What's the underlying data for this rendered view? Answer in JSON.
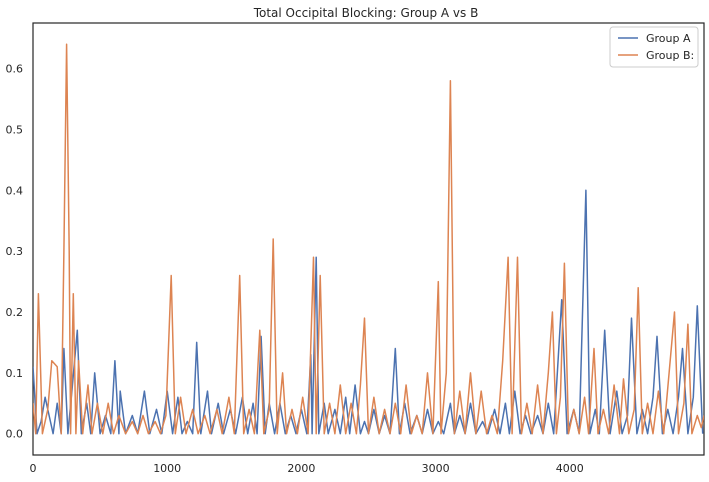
{
  "chart_data": {
    "type": "line",
    "title": "Total Occipital Blocking: Group A vs B",
    "xlabel": "",
    "ylabel": "",
    "xlim": [
      0,
      5000
    ],
    "ylim": [
      -0.035,
      0.675
    ],
    "x_ticks": [
      0,
      1000,
      2000,
      3000,
      4000
    ],
    "x_tick_labels": [
      "0",
      "1000",
      "2000",
      "3000",
      "4000"
    ],
    "y_ticks": [
      0.0,
      0.1,
      0.2,
      0.3,
      0.4,
      0.5,
      0.6
    ],
    "y_tick_labels": [
      "0.0",
      "0.1",
      "0.2",
      "0.3",
      "0.4",
      "0.5",
      "0.6"
    ],
    "grid": false,
    "legend_position": "top-right",
    "series": [
      {
        "name": "Group A",
        "color": "#4c72b0",
        "points": [
          [
            0,
            0.11
          ],
          [
            30,
            0.0
          ],
          [
            60,
            0.02
          ],
          [
            90,
            0.06
          ],
          [
            120,
            0.03
          ],
          [
            150,
            0.0
          ],
          [
            180,
            0.05
          ],
          [
            210,
            0.0
          ],
          [
            230,
            0.14
          ],
          [
            260,
            0.0
          ],
          [
            290,
            0.07
          ],
          [
            330,
            0.17
          ],
          [
            360,
            0.0
          ],
          [
            400,
            0.05
          ],
          [
            430,
            0.0
          ],
          [
            460,
            0.1
          ],
          [
            500,
            0.0
          ],
          [
            540,
            0.03
          ],
          [
            580,
            0.0
          ],
          [
            610,
            0.12
          ],
          [
            640,
            0.0
          ],
          [
            650,
            0.07
          ],
          [
            690,
            0.0
          ],
          [
            740,
            0.03
          ],
          [
            780,
            0.0
          ],
          [
            830,
            0.07
          ],
          [
            870,
            0.0
          ],
          [
            920,
            0.04
          ],
          [
            960,
            0.0
          ],
          [
            1000,
            0.07
          ],
          [
            1040,
            0.0
          ],
          [
            1080,
            0.06
          ],
          [
            1110,
            0.0
          ],
          [
            1150,
            0.02
          ],
          [
            1190,
            0.0
          ],
          [
            1220,
            0.15
          ],
          [
            1250,
            0.0
          ],
          [
            1300,
            0.07
          ],
          [
            1330,
            0.0
          ],
          [
            1380,
            0.05
          ],
          [
            1420,
            0.0
          ],
          [
            1470,
            0.04
          ],
          [
            1510,
            0.0
          ],
          [
            1560,
            0.06
          ],
          [
            1600,
            0.0
          ],
          [
            1640,
            0.05
          ],
          [
            1670,
            0.0
          ],
          [
            1700,
            0.16
          ],
          [
            1730,
            0.0
          ],
          [
            1760,
            0.05
          ],
          [
            1800,
            0.0
          ],
          [
            1840,
            0.05
          ],
          [
            1880,
            0.0
          ],
          [
            1920,
            0.03
          ],
          [
            1960,
            0.0
          ],
          [
            2000,
            0.04
          ],
          [
            2040,
            0.0
          ],
          [
            2070,
            0.13
          ],
          [
            2080,
            0.0
          ],
          [
            2110,
            0.29
          ],
          [
            2130,
            0.0
          ],
          [
            2170,
            0.05
          ],
          [
            2200,
            0.0
          ],
          [
            2250,
            0.04
          ],
          [
            2290,
            0.0
          ],
          [
            2330,
            0.06
          ],
          [
            2360,
            0.0
          ],
          [
            2400,
            0.08
          ],
          [
            2440,
            0.0
          ],
          [
            2470,
            0.02
          ],
          [
            2500,
            0.0
          ],
          [
            2540,
            0.04
          ],
          [
            2580,
            0.0
          ],
          [
            2620,
            0.03
          ],
          [
            2660,
            0.0
          ],
          [
            2700,
            0.14
          ],
          [
            2730,
            0.0
          ],
          [
            2770,
            0.05
          ],
          [
            2810,
            0.0
          ],
          [
            2860,
            0.03
          ],
          [
            2900,
            0.0
          ],
          [
            2940,
            0.04
          ],
          [
            2980,
            0.0
          ],
          [
            3020,
            0.02
          ],
          [
            3060,
            0.0
          ],
          [
            3110,
            0.05
          ],
          [
            3140,
            0.0
          ],
          [
            3180,
            0.03
          ],
          [
            3220,
            0.0
          ],
          [
            3260,
            0.05
          ],
          [
            3300,
            0.0
          ],
          [
            3350,
            0.02
          ],
          [
            3390,
            0.0
          ],
          [
            3440,
            0.04
          ],
          [
            3480,
            0.0
          ],
          [
            3520,
            0.05
          ],
          [
            3550,
            0.0
          ],
          [
            3590,
            0.07
          ],
          [
            3630,
            0.0
          ],
          [
            3670,
            0.03
          ],
          [
            3710,
            0.0
          ],
          [
            3760,
            0.03
          ],
          [
            3800,
            0.0
          ],
          [
            3840,
            0.05
          ],
          [
            3880,
            0.0
          ],
          [
            3940,
            0.22
          ],
          [
            3980,
            0.0
          ],
          [
            4030,
            0.04
          ],
          [
            4070,
            0.0
          ],
          [
            4120,
            0.4
          ],
          [
            4150,
            0.0
          ],
          [
            4190,
            0.04
          ],
          [
            4220,
            0.0
          ],
          [
            4260,
            0.17
          ],
          [
            4300,
            0.0
          ],
          [
            4350,
            0.07
          ],
          [
            4390,
            0.0
          ],
          [
            4430,
            0.03
          ],
          [
            4460,
            0.19
          ],
          [
            4500,
            0.0
          ],
          [
            4540,
            0.04
          ],
          [
            4580,
            0.0
          ],
          [
            4620,
            0.06
          ],
          [
            4650,
            0.16
          ],
          [
            4690,
            0.0
          ],
          [
            4730,
            0.04
          ],
          [
            4770,
            0.0
          ],
          [
            4810,
            0.06
          ],
          [
            4840,
            0.14
          ],
          [
            4880,
            0.0
          ],
          [
            4920,
            0.06
          ],
          [
            4950,
            0.21
          ],
          [
            4990,
            0.0
          ]
        ]
      },
      {
        "name": "Group B:",
        "color": "#dd8452",
        "points": [
          [
            0,
            0.05
          ],
          [
            20,
            0.0
          ],
          [
            40,
            0.23
          ],
          [
            70,
            0.0
          ],
          [
            110,
            0.04
          ],
          [
            140,
            0.12
          ],
          [
            180,
            0.11
          ],
          [
            210,
            0.0
          ],
          [
            230,
            0.3
          ],
          [
            250,
            0.64
          ],
          [
            270,
            0.3
          ],
          [
            280,
            0.0
          ],
          [
            300,
            0.23
          ],
          [
            320,
            0.0
          ],
          [
            340,
            0.12
          ],
          [
            370,
            0.0
          ],
          [
            410,
            0.08
          ],
          [
            440,
            0.0
          ],
          [
            480,
            0.05
          ],
          [
            520,
            0.0
          ],
          [
            560,
            0.05
          ],
          [
            600,
            0.0
          ],
          [
            640,
            0.03
          ],
          [
            690,
            0.0
          ],
          [
            740,
            0.02
          ],
          [
            780,
            0.0
          ],
          [
            820,
            0.03
          ],
          [
            860,
            0.0
          ],
          [
            910,
            0.02
          ],
          [
            950,
            0.0
          ],
          [
            990,
            0.03
          ],
          [
            1030,
            0.26
          ],
          [
            1060,
            0.0
          ],
          [
            1100,
            0.06
          ],
          [
            1140,
            0.0
          ],
          [
            1190,
            0.04
          ],
          [
            1230,
            0.0
          ],
          [
            1280,
            0.03
          ],
          [
            1320,
            0.0
          ],
          [
            1370,
            0.04
          ],
          [
            1410,
            0.0
          ],
          [
            1460,
            0.06
          ],
          [
            1500,
            0.0
          ],
          [
            1540,
            0.26
          ],
          [
            1570,
            0.0
          ],
          [
            1610,
            0.04
          ],
          [
            1650,
            0.0
          ],
          [
            1690,
            0.17
          ],
          [
            1720,
            0.0
          ],
          [
            1760,
            0.04
          ],
          [
            1790,
            0.32
          ],
          [
            1820,
            0.0
          ],
          [
            1860,
            0.1
          ],
          [
            1890,
            0.0
          ],
          [
            1930,
            0.04
          ],
          [
            1970,
            0.0
          ],
          [
            2010,
            0.06
          ],
          [
            2050,
            0.0
          ],
          [
            2090,
            0.29
          ],
          [
            2110,
            0.0
          ],
          [
            2140,
            0.26
          ],
          [
            2170,
            0.0
          ],
          [
            2210,
            0.05
          ],
          [
            2250,
            0.0
          ],
          [
            2290,
            0.08
          ],
          [
            2330,
            0.0
          ],
          [
            2370,
            0.05
          ],
          [
            2410,
            0.0
          ],
          [
            2440,
            0.08
          ],
          [
            2470,
            0.19
          ],
          [
            2500,
            0.0
          ],
          [
            2540,
            0.06
          ],
          [
            2580,
            0.0
          ],
          [
            2620,
            0.04
          ],
          [
            2660,
            0.0
          ],
          [
            2700,
            0.05
          ],
          [
            2740,
            0.0
          ],
          [
            2780,
            0.08
          ],
          [
            2820,
            0.0
          ],
          [
            2860,
            0.03
          ],
          [
            2900,
            0.0
          ],
          [
            2940,
            0.1
          ],
          [
            2980,
            0.0
          ],
          [
            3020,
            0.25
          ],
          [
            3040,
            0.0
          ],
          [
            3080,
            0.1
          ],
          [
            3110,
            0.58
          ],
          [
            3140,
            0.0
          ],
          [
            3180,
            0.07
          ],
          [
            3220,
            0.0
          ],
          [
            3260,
            0.1
          ],
          [
            3300,
            0.0
          ],
          [
            3340,
            0.07
          ],
          [
            3380,
            0.0
          ],
          [
            3420,
            0.03
          ],
          [
            3460,
            0.0
          ],
          [
            3500,
            0.12
          ],
          [
            3540,
            0.29
          ],
          [
            3570,
            0.0
          ],
          [
            3610,
            0.29
          ],
          [
            3640,
            0.0
          ],
          [
            3680,
            0.05
          ],
          [
            3720,
            0.0
          ],
          [
            3760,
            0.08
          ],
          [
            3800,
            0.0
          ],
          [
            3840,
            0.1
          ],
          [
            3870,
            0.2
          ],
          [
            3900,
            0.0
          ],
          [
            3930,
            0.06
          ],
          [
            3960,
            0.28
          ],
          [
            3990,
            0.0
          ],
          [
            4030,
            0.04
          ],
          [
            4070,
            0.0
          ],
          [
            4110,
            0.06
          ],
          [
            4140,
            0.0
          ],
          [
            4180,
            0.14
          ],
          [
            4210,
            0.0
          ],
          [
            4250,
            0.04
          ],
          [
            4290,
            0.0
          ],
          [
            4330,
            0.08
          ],
          [
            4370,
            0.0
          ],
          [
            4400,
            0.09
          ],
          [
            4440,
            0.0
          ],
          [
            4480,
            0.04
          ],
          [
            4510,
            0.24
          ],
          [
            4540,
            0.0
          ],
          [
            4580,
            0.05
          ],
          [
            4620,
            0.0
          ],
          [
            4660,
            0.07
          ],
          [
            4700,
            0.0
          ],
          [
            4740,
            0.1
          ],
          [
            4780,
            0.2
          ],
          [
            4810,
            0.0
          ],
          [
            4850,
            0.05
          ],
          [
            4880,
            0.18
          ],
          [
            4910,
            0.0
          ],
          [
            4950,
            0.03
          ],
          [
            4980,
            0.01
          ],
          [
            5000,
            0.03
          ]
        ]
      }
    ]
  }
}
